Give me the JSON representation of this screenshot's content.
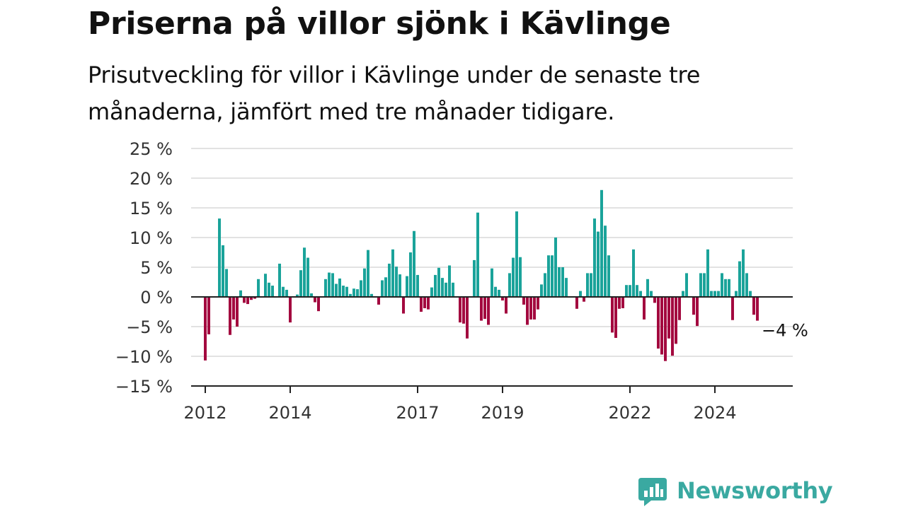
{
  "title": "Priserna på villor sjönk i Kävlinge",
  "subtitle": "Prisutveckling för villor i Kävlinge under de senaste tre månaderna, jämfört med tre månader tidigare.",
  "brand": {
    "name": "Newsworthy",
    "color": "#3aa9a1"
  },
  "colors": {
    "positive": "#1aa39a",
    "negative": "#a3093f",
    "grid": "#d9d9d9",
    "axis": "#222222"
  },
  "chart_data": {
    "type": "bar",
    "xlabel": "",
    "ylabel": "",
    "ylim": [
      -15,
      25
    ],
    "yticks": [
      25,
      20,
      15,
      10,
      5,
      0,
      -5,
      -10,
      -15
    ],
    "ytick_labels": [
      "25 %",
      "20 %",
      "15 %",
      "10 %",
      "5 %",
      "0 %",
      "−5 %",
      "−10 %",
      "−15 %"
    ],
    "xlim": [
      "2011-09",
      "2025-11"
    ],
    "xticks": [
      "2012-01",
      "2014-01",
      "2017-01",
      "2019-01",
      "2022-01",
      "2024-01"
    ],
    "xtick_labels": [
      "2012",
      "2014",
      "2017",
      "2019",
      "2022",
      "2024"
    ],
    "grid": true,
    "start_month": "2012-01",
    "values": [
      -10.7,
      -6.3,
      0,
      0,
      13.2,
      8.7,
      4.7,
      -6.4,
      -3.8,
      -5.0,
      1.1,
      -1.0,
      -1.2,
      -0.5,
      -0.3,
      3.0,
      0,
      3.9,
      2.4,
      1.9,
      0,
      5.6,
      1.7,
      1.2,
      -4.3,
      0,
      0.4,
      4.5,
      8.3,
      6.6,
      0.6,
      -0.9,
      -2.4,
      0,
      3.0,
      4.1,
      4.0,
      2.2,
      3.1,
      1.9,
      1.7,
      0.5,
      1.4,
      1.3,
      2.8,
      4.8,
      7.9,
      0.5,
      0,
      -1.3,
      2.8,
      3.3,
      5.6,
      8.0,
      5.1,
      3.8,
      -2.8,
      3.5,
      7.5,
      11.1,
      3.7,
      -2.5,
      -1.9,
      -2.1,
      1.6,
      3.7,
      4.9,
      3.2,
      2.4,
      5.3,
      2.4,
      0,
      -4.3,
      -4.5,
      -7.0,
      0,
      6.2,
      14.2,
      -4.0,
      -3.7,
      -4.7,
      4.8,
      1.7,
      1.2,
      -0.6,
      -2.8,
      4.0,
      6.6,
      14.4,
      6.7,
      -1.3,
      -4.7,
      -3.8,
      -3.8,
      -2.1,
      2.1,
      4.0,
      7.0,
      7.0,
      10.0,
      5.0,
      5.0,
      3.2,
      0,
      0,
      -2.0,
      1.0,
      -0.8,
      4.0,
      4.0,
      13.2,
      11.0,
      18.0,
      12.0,
      7.0,
      -6.0,
      -6.9,
      -2.0,
      -1.9,
      2.0,
      2.0,
      8.0,
      2.0,
      1.0,
      -3.8,
      3.0,
      1.0,
      -1.0,
      -8.7,
      -9.7,
      -10.8,
      -7.0,
      -9.9,
      -7.9,
      -3.9,
      1.0,
      4.0,
      0,
      -3.0,
      -4.9,
      4.0,
      4.0,
      8.0,
      1.0,
      1.0,
      1.0,
      4.0,
      3.0,
      3.0,
      -3.9,
      1.0,
      6.0,
      8.0,
      4.0,
      1.0,
      -3.0,
      -4.0
    ],
    "annotations": [
      {
        "label": "−4 %",
        "value": -4.0,
        "month": "2025-01"
      }
    ]
  }
}
